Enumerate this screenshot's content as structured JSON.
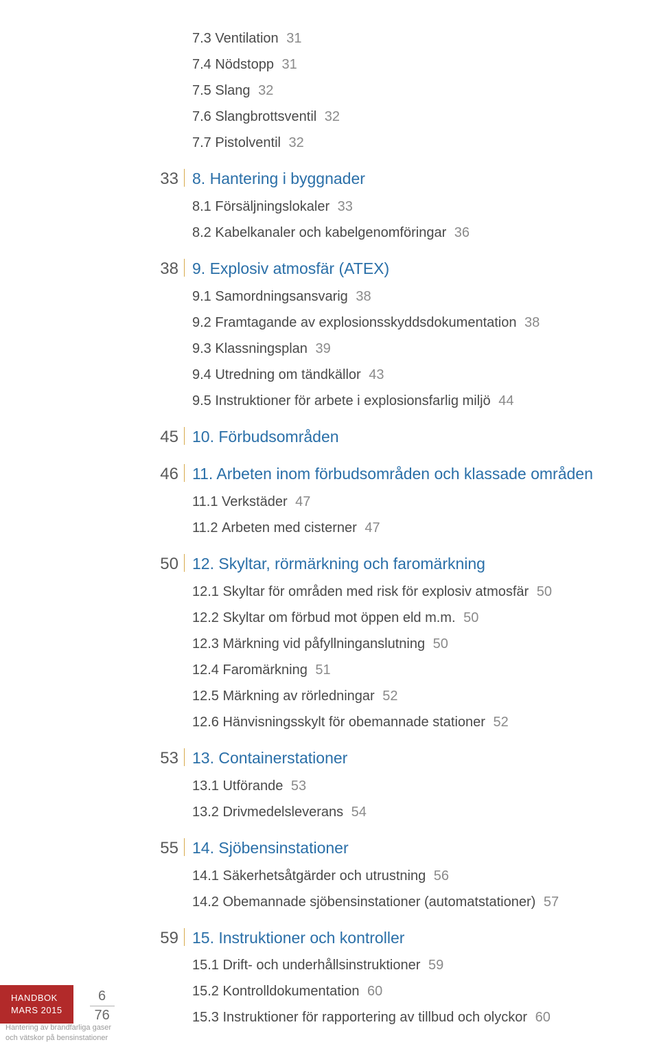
{
  "toc": [
    {
      "type": "sub",
      "num": "7.3",
      "title": "Ventilation",
      "page": "31"
    },
    {
      "type": "sub",
      "num": "7.4",
      "title": "Nödstopp",
      "page": "31"
    },
    {
      "type": "sub",
      "num": "7.5",
      "title": "Slang",
      "page": "32"
    },
    {
      "type": "sub",
      "num": "7.6",
      "title": "Slangbrottsventil",
      "page": "32"
    },
    {
      "type": "sub",
      "num": "7.7",
      "title": "Pistolventil",
      "page": "32"
    },
    {
      "type": "section",
      "leftPage": "33",
      "num": "8.",
      "title": "Hantering i byggnader"
    },
    {
      "type": "sub",
      "num": "8.1",
      "title": "Försäljningslokaler",
      "page": "33"
    },
    {
      "type": "sub",
      "num": "8.2",
      "title": "Kabelkanaler och kabelgenomföringar",
      "page": "36"
    },
    {
      "type": "section",
      "leftPage": "38",
      "num": "9.",
      "title": "Explosiv atmosfär (ATEX)"
    },
    {
      "type": "sub",
      "num": "9.1",
      "title": "Samordningsansvarig",
      "page": "38"
    },
    {
      "type": "sub",
      "num": "9.2",
      "title": "Framtagande av explosionsskyddsdokumentation",
      "page": "38"
    },
    {
      "type": "sub",
      "num": "9.3",
      "title": "Klassningsplan",
      "page": "39"
    },
    {
      "type": "sub",
      "num": "9.4",
      "title": "Utredning om tändkällor",
      "page": "43"
    },
    {
      "type": "sub",
      "num": "9.5",
      "title": "Instruktioner för arbete i explosionsfarlig miljö",
      "page": "44"
    },
    {
      "type": "section",
      "leftPage": "45",
      "num": "10.",
      "title": "Förbudsområden"
    },
    {
      "type": "section",
      "leftPage": "46",
      "num": "11.",
      "title": "Arbeten inom förbudsområden och klassade områden"
    },
    {
      "type": "sub",
      "num": "11.1",
      "title": "Verkstäder",
      "page": "47"
    },
    {
      "type": "sub",
      "num": "11.2",
      "title": "Arbeten med cisterner",
      "page": "47"
    },
    {
      "type": "section",
      "leftPage": "50",
      "num": "12.",
      "title": "Skyltar, rörmärkning och faromärkning"
    },
    {
      "type": "sub",
      "num": "12.1",
      "title": "Skyltar för områden med risk för explosiv atmosfär",
      "page": "50"
    },
    {
      "type": "sub",
      "num": "12.2",
      "title": "Skyltar om förbud mot öppen eld m.m.",
      "page": "50"
    },
    {
      "type": "sub",
      "num": "12.3",
      "title": "Märkning vid påfyllninganslutning",
      "page": "50"
    },
    {
      "type": "sub",
      "num": "12.4",
      "title": "Faromärkning",
      "page": "51"
    },
    {
      "type": "sub",
      "num": "12.5",
      "title": "Märkning av rörledningar",
      "page": "52"
    },
    {
      "type": "sub",
      "num": "12.6",
      "title": "Hänvisningsskylt för obemannade stationer",
      "page": "52"
    },
    {
      "type": "section",
      "leftPage": "53",
      "num": "13.",
      "title": "Containerstationer"
    },
    {
      "type": "sub",
      "num": "13.1",
      "title": "Utförande",
      "page": "53"
    },
    {
      "type": "sub",
      "num": "13.2",
      "title": "Drivmedelsleverans",
      "page": "54"
    },
    {
      "type": "section",
      "leftPage": "55",
      "num": "14.",
      "title": "Sjöbensinstationer"
    },
    {
      "type": "sub",
      "num": "14.1",
      "title": "Säkerhetsåtgärder och utrustning",
      "page": "56"
    },
    {
      "type": "sub",
      "num": "14.2",
      "title": "Obemannade sjöbensinstationer (automatstationer)",
      "page": "57"
    },
    {
      "type": "section",
      "leftPage": "59",
      "num": "15.",
      "title": "Instruktioner och kontroller"
    },
    {
      "type": "sub",
      "num": "15.1",
      "title": "Drift- och underhållsinstruktioner",
      "page": "59"
    },
    {
      "type": "sub",
      "num": "15.2",
      "title": "Kontrolldokumentation",
      "page": "60"
    },
    {
      "type": "sub",
      "num": "15.3",
      "title": "Instruktioner för rapportering av tillbud och olyckor",
      "page": "60"
    }
  ],
  "footer": {
    "box_line1": "HANDBOK",
    "box_line2": "MARS 2015",
    "page_current": "6",
    "page_total": "76",
    "caption_line1": "Hantering av brandfarliga gaser",
    "caption_line2": "och vätskor på bensinstationer"
  },
  "colors": {
    "section": "#2a6fa8",
    "divider": "#d6a94a",
    "body": "#4a4a4a",
    "page_inline": "#8a8a8a",
    "red_box": "#b22a2a"
  }
}
